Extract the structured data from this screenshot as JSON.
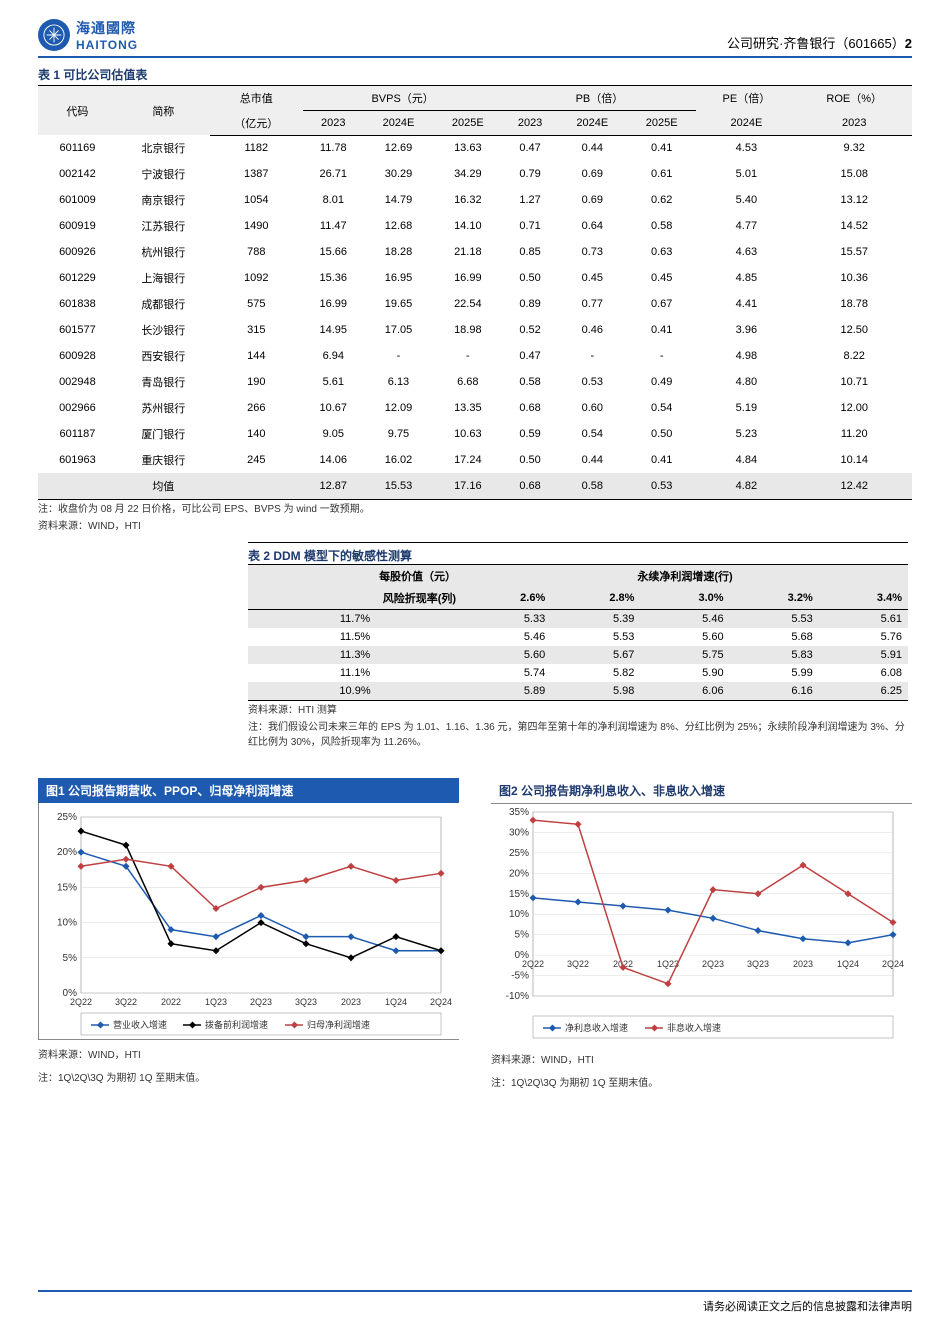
{
  "header": {
    "logo_cn": "海通國際",
    "logo_en": "HAITONG",
    "right_prefix": "公司研究·齐鲁银行（",
    "right_code": "601665",
    "right_suffix": "）",
    "page_no": "2"
  },
  "table1": {
    "title": "表 1 可比公司估值表",
    "group_headers": {
      "code": "代码",
      "name": "简称",
      "mktcap": "总市值",
      "mktcap_unit": "（亿元）",
      "bvps": "BVPS（元）",
      "pb": "PB（倍）",
      "pe": "PE（倍）",
      "roe": "ROE（%）"
    },
    "sub_headers": [
      "2023",
      "2024E",
      "2025E",
      "2023",
      "2024E",
      "2025E",
      "2024E",
      "2023"
    ],
    "rows": [
      {
        "code": "601169",
        "name": "北京银行",
        "mkt": "1182",
        "c": [
          "11.78",
          "12.69",
          "13.63",
          "0.47",
          "0.44",
          "0.41",
          "4.53",
          "9.32"
        ]
      },
      {
        "code": "002142",
        "name": "宁波银行",
        "mkt": "1387",
        "c": [
          "26.71",
          "30.29",
          "34.29",
          "0.79",
          "0.69",
          "0.61",
          "5.01",
          "15.08"
        ]
      },
      {
        "code": "601009",
        "name": "南京银行",
        "mkt": "1054",
        "c": [
          "8.01",
          "14.79",
          "16.32",
          "1.27",
          "0.69",
          "0.62",
          "5.40",
          "13.12"
        ]
      },
      {
        "code": "600919",
        "name": "江苏银行",
        "mkt": "1490",
        "c": [
          "11.47",
          "12.68",
          "14.10",
          "0.71",
          "0.64",
          "0.58",
          "4.77",
          "14.52"
        ]
      },
      {
        "code": "600926",
        "name": "杭州银行",
        "mkt": "788",
        "c": [
          "15.66",
          "18.28",
          "21.18",
          "0.85",
          "0.73",
          "0.63",
          "4.63",
          "15.57"
        ]
      },
      {
        "code": "601229",
        "name": "上海银行",
        "mkt": "1092",
        "c": [
          "15.36",
          "16.95",
          "16.99",
          "0.50",
          "0.45",
          "0.45",
          "4.85",
          "10.36"
        ]
      },
      {
        "code": "601838",
        "name": "成都银行",
        "mkt": "575",
        "c": [
          "16.99",
          "19.65",
          "22.54",
          "0.89",
          "0.77",
          "0.67",
          "4.41",
          "18.78"
        ]
      },
      {
        "code": "601577",
        "name": "长沙银行",
        "mkt": "315",
        "c": [
          "14.95",
          "17.05",
          "18.98",
          "0.52",
          "0.46",
          "0.41",
          "3.96",
          "12.50"
        ]
      },
      {
        "code": "600928",
        "name": "西安银行",
        "mkt": "144",
        "c": [
          "6.94",
          "-",
          "-",
          "0.47",
          "-",
          "-",
          "4.98",
          "8.22"
        ]
      },
      {
        "code": "002948",
        "name": "青岛银行",
        "mkt": "190",
        "c": [
          "5.61",
          "6.13",
          "6.68",
          "0.58",
          "0.53",
          "0.49",
          "4.80",
          "10.71"
        ]
      },
      {
        "code": "002966",
        "name": "苏州银行",
        "mkt": "266",
        "c": [
          "10.67",
          "12.09",
          "13.35",
          "0.68",
          "0.60",
          "0.54",
          "5.19",
          "12.00"
        ]
      },
      {
        "code": "601187",
        "name": "厦门银行",
        "mkt": "140",
        "c": [
          "9.05",
          "9.75",
          "10.63",
          "0.59",
          "0.54",
          "0.50",
          "5.23",
          "11.20"
        ]
      },
      {
        "code": "601963",
        "name": "重庆银行",
        "mkt": "245",
        "c": [
          "14.06",
          "16.02",
          "17.24",
          "0.50",
          "0.44",
          "0.41",
          "4.84",
          "10.14"
        ]
      }
    ],
    "avg": {
      "label": "均值",
      "c": [
        "12.87",
        "15.53",
        "17.16",
        "0.68",
        "0.58",
        "0.53",
        "4.82",
        "12.42"
      ]
    },
    "note1": "注：收盘价为 08 月 22 日价格，可比公司 EPS、BVPS 为 wind 一致预期。",
    "note2": "资料来源：WIND，HTI"
  },
  "table2": {
    "title": "表 2 DDM 模型下的敏感性测算",
    "h_left": "每股价值（元）",
    "h_right": "永续净利润增速(行)",
    "row_label": "风险折现率(列)",
    "cols": [
      "2.6%",
      "2.8%",
      "3.0%",
      "3.2%",
      "3.4%"
    ],
    "rows": [
      {
        "r": "11.7%",
        "v": [
          "5.33",
          "5.39",
          "5.46",
          "5.53",
          "5.61"
        ]
      },
      {
        "r": "11.5%",
        "v": [
          "5.46",
          "5.53",
          "5.60",
          "5.68",
          "5.76"
        ]
      },
      {
        "r": "11.3%",
        "v": [
          "5.60",
          "5.67",
          "5.75",
          "5.83",
          "5.91"
        ]
      },
      {
        "r": "11.1%",
        "v": [
          "5.74",
          "5.82",
          "5.90",
          "5.99",
          "6.08"
        ]
      },
      {
        "r": "10.9%",
        "v": [
          "5.89",
          "5.98",
          "6.06",
          "6.16",
          "6.25"
        ]
      }
    ],
    "note1": "资料来源：HTI 测算",
    "note2": "注：我们假设公司未来三年的 EPS 为 1.01、1.16、1.36 元，第四年至第十年的净利润增速为 8%、分红比例为 25%；永续阶段净利润增速为 3%、分红比例为 30%，风险折现率为 11.26%。"
  },
  "chart1": {
    "title": "图1  公司报告期营收、PPOP、归母净利润增速",
    "x_labels": [
      "2Q22",
      "3Q22",
      "2022",
      "1Q23",
      "2Q23",
      "3Q23",
      "2023",
      "1Q24",
      "2Q24"
    ],
    "y_ticks": [
      "0%",
      "5%",
      "10%",
      "15%",
      "20%",
      "25%"
    ],
    "y_min": 0,
    "y_max": 25,
    "series": [
      {
        "name": "营业收入增速",
        "color": "#1e5bb0",
        "values": [
          20,
          18,
          9,
          8,
          11,
          8,
          8,
          6,
          6
        ]
      },
      {
        "name": "拨备前利润增速",
        "color": "#000000",
        "values": [
          23,
          21,
          7,
          6,
          10,
          7,
          5,
          8,
          6
        ]
      },
      {
        "name": "归母净利润增速",
        "color": "#bf4040",
        "values": [
          18,
          19,
          18,
          12,
          15,
          16,
          18,
          16,
          17
        ]
      }
    ],
    "legend": [
      "营业收入增速",
      "拨备前利润增速",
      "归母净利润增速"
    ],
    "note1": "资料来源：WIND，HTI",
    "note2": "注：1Q\\2Q\\3Q 为期初 1Q 至期末值。"
  },
  "chart2": {
    "title": "图2  公司报告期净利息收入、非息收入增速",
    "x_labels": [
      "2Q22",
      "3Q22",
      "2022",
      "1Q23",
      "2Q23",
      "3Q23",
      "2023",
      "1Q24",
      "2Q24"
    ],
    "y_ticks": [
      "-10%",
      "-5%",
      "0%",
      "5%",
      "10%",
      "15%",
      "20%",
      "25%",
      "30%",
      "35%"
    ],
    "y_min": -10,
    "y_max": 35,
    "series": [
      {
        "name": "净利息收入增速",
        "color": "#1e5bb0",
        "values": [
          14,
          13,
          12,
          11,
          9,
          6,
          4,
          3,
          5
        ]
      },
      {
        "name": "非息收入增速",
        "color": "#bf4040",
        "values": [
          33,
          32,
          -3,
          -7,
          16,
          15,
          22,
          15,
          8
        ]
      }
    ],
    "legend": [
      "净利息收入增速",
      "非息收入增速"
    ],
    "note1": "资料来源：WIND，HTI",
    "note2": "注：1Q\\2Q\\3Q 为期初 1Q 至期末值。"
  },
  "footer": {
    "text": "请务必阅读正文之后的信息披露和法律声明"
  },
  "colors": {
    "brand": "#1e5bb0",
    "grid": "#d8d8d8",
    "text": "#000000"
  }
}
